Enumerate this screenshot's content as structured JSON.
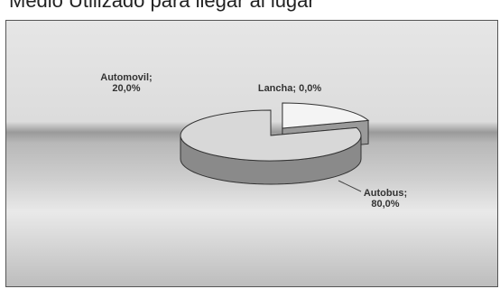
{
  "chart_data": {
    "type": "pie",
    "title": "Medio Utilizado para llegar al lugar",
    "values": [
      20,
      0,
      80
    ],
    "value_labels": [
      "Automovil; 20,0%",
      "Lancha; 0,0%",
      "Autobus; 80,0%"
    ],
    "colors": [
      "#f4f4f4",
      "#cfcfcf",
      "#d8d8d8"
    ],
    "explode": [
      true,
      false,
      false
    ]
  }
}
